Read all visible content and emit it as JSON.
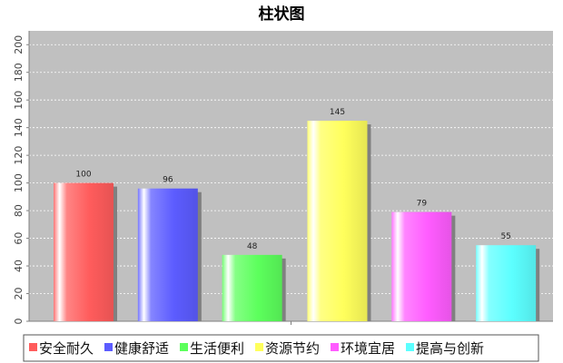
{
  "chart_data": {
    "type": "bar",
    "title": "柱状图",
    "xlabel": "",
    "ylabel": "",
    "ylim": [
      0,
      210
    ],
    "yticks": [
      0,
      20,
      40,
      60,
      80,
      100,
      120,
      140,
      160,
      180,
      200
    ],
    "grid": true,
    "legend_position": "bottom",
    "series": [
      {
        "name": "安全耐久",
        "value": 100,
        "color": "#ff5c5c"
      },
      {
        "name": "健康舒适",
        "value": 96,
        "color": "#5c5cff"
      },
      {
        "name": "生活便利",
        "value": 48,
        "color": "#5cff5c"
      },
      {
        "name": "资源节约",
        "value": 145,
        "color": "#ffff5c"
      },
      {
        "name": "环境宜居",
        "value": 79,
        "color": "#ff5cff"
      },
      {
        "name": "提高与创新",
        "value": 55,
        "color": "#5cffff"
      }
    ],
    "plot_background": "#c0c0c0"
  }
}
